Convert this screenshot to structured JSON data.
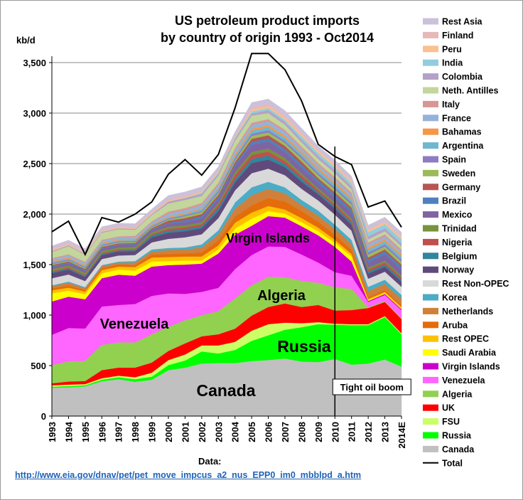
{
  "chart_data": {
    "type": "area",
    "title": [
      "US petroleum product imports",
      "by country of origin 1993 - Oct2014"
    ],
    "ylabel": "kb/d",
    "ylim": [
      0,
      3700
    ],
    "yticks": [
      0,
      500,
      1000,
      1500,
      2000,
      2500,
      3000,
      3500
    ],
    "ytick_labels": [
      "0",
      "500",
      "1,000",
      "1,500",
      "2,000",
      "2,500",
      "3,000",
      "3,500"
    ],
    "categories": [
      "1993",
      "1994",
      "1995",
      "1996",
      "1997",
      "1998",
      "1999",
      "2000",
      "2001",
      "2002",
      "2003",
      "2004",
      "2005",
      "2006",
      "2007",
      "2008",
      "2009",
      "2010",
      "2011",
      "2012",
      "2013",
      "2014E"
    ],
    "grid": "horizontal",
    "legend_placement": "right",
    "series": [
      {
        "name": "Canada",
        "color": "#c0c0c0",
        "values": [
          280,
          285,
          295,
          345,
          365,
          340,
          360,
          455,
          480,
          520,
          525,
          525,
          545,
          555,
          570,
          540,
          535,
          565,
          510,
          520,
          560,
          490
        ]
      },
      {
        "name": "Russia",
        "color": "#00ff00",
        "values": [
          10,
          12,
          10,
          15,
          20,
          25,
          30,
          50,
          70,
          120,
          95,
          130,
          200,
          245,
          285,
          340,
          375,
          340,
          390,
          380,
          420,
          320
        ]
      },
      {
        "name": "FSU",
        "color": "#ccff66",
        "values": [
          15,
          15,
          12,
          15,
          15,
          20,
          40,
          50,
          60,
          60,
          80,
          80,
          100,
          110,
          70,
          40,
          20,
          10,
          10,
          10,
          10,
          10
        ]
      },
      {
        "name": "UK",
        "color": "#ff0000",
        "values": [
          20,
          30,
          30,
          80,
          80,
          95,
          100,
          90,
          110,
          90,
          110,
          130,
          150,
          170,
          190,
          160,
          170,
          130,
          140,
          160,
          140,
          140
        ]
      },
      {
        "name": "Algeria",
        "color": "#92d050",
        "values": [
          180,
          200,
          200,
          250,
          250,
          250,
          280,
          240,
          230,
          210,
          230,
          300,
          300,
          300,
          260,
          260,
          220,
          230,
          210,
          10,
          10,
          10
        ]
      },
      {
        "name": "Venezuela",
        "color": "#ff66ff",
        "values": [
          300,
          330,
          320,
          380,
          370,
          380,
          380,
          330,
          260,
          230,
          230,
          290,
          300,
          300,
          300,
          260,
          200,
          150,
          130,
          50,
          60,
          80
        ]
      },
      {
        "name": "Virgin Islands",
        "color": "#cc00cc",
        "values": [
          330,
          310,
          290,
          280,
          300,
          280,
          290,
          280,
          290,
          280,
          340,
          340,
          290,
          300,
          290,
          280,
          270,
          250,
          140,
          10,
          10,
          10
        ]
      },
      {
        "name": "Saudi Arabia",
        "color": "#ffff00",
        "values": [
          80,
          60,
          50,
          50,
          50,
          50,
          50,
          40,
          40,
          30,
          40,
          60,
          70,
          50,
          40,
          40,
          40,
          40,
          50,
          10,
          10,
          10
        ]
      },
      {
        "name": "Rest OPEC",
        "color": "#ffc000",
        "values": [
          30,
          30,
          25,
          30,
          30,
          35,
          40,
          40,
          40,
          40,
          40,
          60,
          60,
          50,
          40,
          40,
          35,
          30,
          25,
          10,
          10,
          10
        ]
      },
      {
        "name": "Aruba",
        "color": "#e46c0a",
        "values": [
          20,
          20,
          15,
          20,
          20,
          20,
          30,
          30,
          30,
          40,
          50,
          60,
          70,
          80,
          80,
          70,
          60,
          50,
          40,
          20,
          20,
          20
        ]
      },
      {
        "name": "Netherlands",
        "color": "#d0803a",
        "values": [
          20,
          30,
          20,
          20,
          20,
          25,
          30,
          40,
          40,
          50,
          60,
          80,
          100,
          90,
          80,
          60,
          60,
          60,
          60,
          60,
          60,
          60
        ]
      },
      {
        "name": "Korea",
        "color": "#4bacc6",
        "values": [
          10,
          10,
          10,
          10,
          10,
          15,
          20,
          20,
          20,
          30,
          40,
          60,
          80,
          70,
          60,
          50,
          50,
          40,
          40,
          40,
          40,
          40
        ]
      },
      {
        "name": "Rest Non-OPEC",
        "color": "#d9d9d9",
        "values": [
          70,
          70,
          60,
          60,
          60,
          60,
          70,
          90,
          100,
          100,
          120,
          120,
          140,
          130,
          120,
          110,
          100,
          100,
          90,
          80,
          80,
          80
        ]
      },
      {
        "name": "Norway",
        "color": "#604a7b",
        "values": [
          50,
          50,
          40,
          40,
          40,
          40,
          50,
          60,
          60,
          60,
          70,
          80,
          100,
          90,
          80,
          70,
          60,
          60,
          60,
          50,
          50,
          50
        ]
      },
      {
        "name": "Belgium",
        "color": "#31859c",
        "values": [
          10,
          10,
          10,
          10,
          10,
          10,
          20,
          20,
          20,
          20,
          30,
          30,
          40,
          40,
          30,
          30,
          20,
          20,
          20,
          20,
          20,
          20
        ]
      },
      {
        "name": "Nigeria",
        "color": "#c0504d",
        "values": [
          10,
          10,
          10,
          10,
          10,
          10,
          10,
          20,
          20,
          20,
          30,
          40,
          40,
          40,
          30,
          30,
          20,
          20,
          20,
          20,
          20,
          20
        ]
      },
      {
        "name": "Trinidad",
        "color": "#77933c",
        "values": [
          20,
          20,
          20,
          20,
          20,
          20,
          20,
          20,
          20,
          20,
          20,
          30,
          30,
          30,
          30,
          20,
          20,
          20,
          20,
          20,
          20,
          20
        ]
      },
      {
        "name": "Mexico",
        "color": "#8064a2",
        "values": [
          20,
          20,
          20,
          20,
          20,
          20,
          20,
          30,
          30,
          40,
          40,
          60,
          70,
          70,
          60,
          60,
          50,
          50,
          60,
          50,
          60,
          60
        ]
      },
      {
        "name": "Brazil",
        "color": "#4f81bd",
        "values": [
          10,
          10,
          10,
          10,
          10,
          10,
          10,
          10,
          20,
          20,
          20,
          20,
          30,
          30,
          30,
          30,
          30,
          30,
          30,
          30,
          30,
          30
        ]
      },
      {
        "name": "Germany",
        "color": "#b65652",
        "values": [
          10,
          10,
          10,
          10,
          10,
          10,
          10,
          20,
          20,
          20,
          20,
          20,
          30,
          30,
          30,
          30,
          20,
          20,
          20,
          20,
          20,
          20
        ]
      },
      {
        "name": "Sweden",
        "color": "#9bbb59",
        "values": [
          10,
          10,
          10,
          10,
          10,
          10,
          10,
          10,
          20,
          20,
          20,
          20,
          30,
          30,
          30,
          30,
          30,
          30,
          30,
          30,
          30,
          30
        ]
      },
      {
        "name": "Spain",
        "color": "#8e7cc3",
        "values": [
          10,
          10,
          10,
          10,
          10,
          10,
          10,
          10,
          10,
          10,
          20,
          20,
          20,
          20,
          20,
          20,
          20,
          20,
          20,
          20,
          20,
          20
        ]
      },
      {
        "name": "Argentina",
        "color": "#6fb7d1",
        "values": [
          10,
          10,
          10,
          10,
          10,
          10,
          10,
          10,
          10,
          20,
          20,
          20,
          30,
          30,
          30,
          30,
          30,
          30,
          30,
          30,
          30,
          30
        ]
      },
      {
        "name": "Bahamas",
        "color": "#f79646",
        "values": [
          10,
          10,
          10,
          10,
          10,
          10,
          10,
          10,
          10,
          10,
          10,
          20,
          20,
          20,
          20,
          20,
          20,
          20,
          20,
          20,
          20,
          20
        ]
      },
      {
        "name": "France",
        "color": "#95b3d7",
        "values": [
          20,
          20,
          20,
          20,
          20,
          20,
          20,
          30,
          30,
          30,
          30,
          40,
          40,
          40,
          40,
          30,
          30,
          30,
          30,
          30,
          30,
          30
        ]
      },
      {
        "name": "Italy",
        "color": "#d99694",
        "values": [
          10,
          10,
          10,
          10,
          10,
          10,
          10,
          20,
          20,
          20,
          20,
          20,
          20,
          20,
          20,
          20,
          20,
          20,
          20,
          20,
          20,
          20
        ]
      },
      {
        "name": "Neth. Antilles",
        "color": "#c3d69b",
        "values": [
          60,
          80,
          70,
          70,
          70,
          60,
          60,
          80,
          80,
          70,
          70,
          70,
          70,
          60,
          50,
          40,
          40,
          40,
          30,
          30,
          30,
          30
        ]
      },
      {
        "name": "Colombia",
        "color": "#b3a2c7",
        "values": [
          10,
          10,
          10,
          10,
          10,
          10,
          10,
          20,
          20,
          20,
          20,
          20,
          20,
          30,
          30,
          30,
          30,
          30,
          30,
          30,
          30,
          30
        ]
      },
      {
        "name": "India",
        "color": "#93cddd",
        "values": [
          0,
          0,
          0,
          0,
          0,
          0,
          0,
          0,
          0,
          10,
          10,
          10,
          20,
          20,
          20,
          30,
          30,
          30,
          30,
          40,
          40,
          40
        ]
      },
      {
        "name": "Peru",
        "color": "#fac090",
        "values": [
          10,
          10,
          10,
          10,
          10,
          10,
          10,
          10,
          10,
          10,
          10,
          10,
          20,
          20,
          20,
          20,
          20,
          20,
          20,
          20,
          20,
          20
        ]
      },
      {
        "name": "Finland",
        "color": "#e6b9b8",
        "values": [
          10,
          10,
          10,
          10,
          10,
          10,
          10,
          10,
          10,
          10,
          10,
          10,
          20,
          20,
          20,
          10,
          10,
          10,
          10,
          10,
          10,
          10
        ]
      },
      {
        "name": "Rest Asia",
        "color": "#ccc1da",
        "values": [
          30,
          30,
          30,
          30,
          30,
          30,
          30,
          40,
          40,
          40,
          40,
          40,
          50,
          50,
          50,
          50,
          40,
          40,
          40,
          40,
          40,
          40
        ]
      }
    ],
    "total": {
      "name": "Total",
      "color": "#000000",
      "values": [
        1825,
        1930,
        1600,
        1965,
        1920,
        2000,
        2120,
        2395,
        2540,
        2385,
        2590,
        3050,
        3590,
        3590,
        3430,
        3120,
        2690,
        2570,
        2490,
        2070,
        2130,
        1870
      ]
    },
    "annotations": {
      "area_labels": [
        "Canada",
        "Russia",
        "Algeria",
        "Venezuela",
        "Virgin Islands"
      ],
      "vertical_line_at": "2010",
      "tight_oil_label": "Tight oil boom"
    }
  },
  "legend_order": [
    "Rest Asia",
    "Finland",
    "Peru",
    "India",
    "Colombia",
    "Neth. Antilles",
    "Italy",
    "France",
    "Bahamas",
    "Argentina",
    "Spain",
    "Sweden",
    "Germany",
    "Brazil",
    "Mexico",
    "Trinidad",
    "Nigeria",
    "Belgium",
    "Norway",
    "Rest Non-OPEC",
    "Korea",
    "Netherlands",
    "Aruba",
    "Rest OPEC",
    "Saudi Arabia",
    "Virgin Islands",
    "Venezuela",
    "Algeria",
    "UK",
    "FSU",
    "Russia",
    "Canada",
    "Total"
  ],
  "source": {
    "label": "Data:",
    "url": "http://www.eia.gov/dnav/pet/pet_move_impcus_a2_nus_EPP0_im0_mbblpd_a.htm"
  }
}
